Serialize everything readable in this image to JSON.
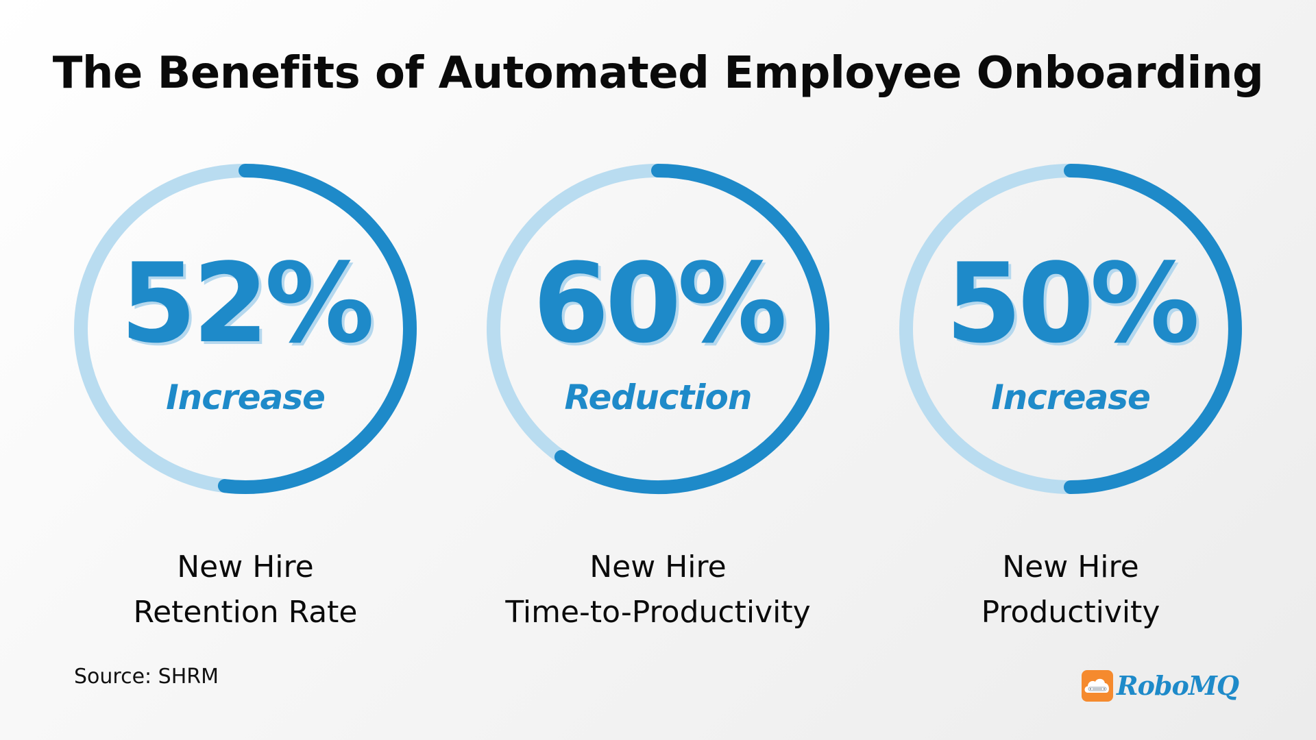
{
  "title": "The Benefits of Automated Employee Onboarding",
  "colors": {
    "accent": "#1e8ac9",
    "track": "#b9dcf0",
    "number_shadow": "#b5d8ee",
    "text": "#0a0a0a",
    "logo_orange": "#f58a2e"
  },
  "stats": [
    {
      "value": "52%",
      "percent": 52,
      "qualifier": "Increase",
      "label_line1": "New Hire",
      "label_line2": "Retention Rate"
    },
    {
      "value": "60%",
      "percent": 60,
      "qualifier": "Reduction",
      "label_line1": "New Hire",
      "label_line2": "Time-to-Productivity"
    },
    {
      "value": "50%",
      "percent": 50,
      "qualifier": "Increase",
      "label_line1": "New Hire",
      "label_line2": "Productivity"
    }
  ],
  "footer": {
    "source": "Source: SHRM",
    "logo_text": "RoboMQ"
  },
  "chart_data": {
    "type": "pie",
    "subtype": "donut-progress",
    "title": "The Benefits of Automated Employee Onboarding",
    "categories": [
      "New Hire Retention Rate",
      "New Hire Time-to-Productivity",
      "New Hire Productivity"
    ],
    "values": [
      52,
      60,
      50
    ],
    "qualifiers": [
      "Increase",
      "Reduction",
      "Increase"
    ],
    "unit": "%",
    "value_range": [
      0,
      100
    ],
    "annotations": [
      "Source: SHRM"
    ],
    "legend": "none"
  }
}
